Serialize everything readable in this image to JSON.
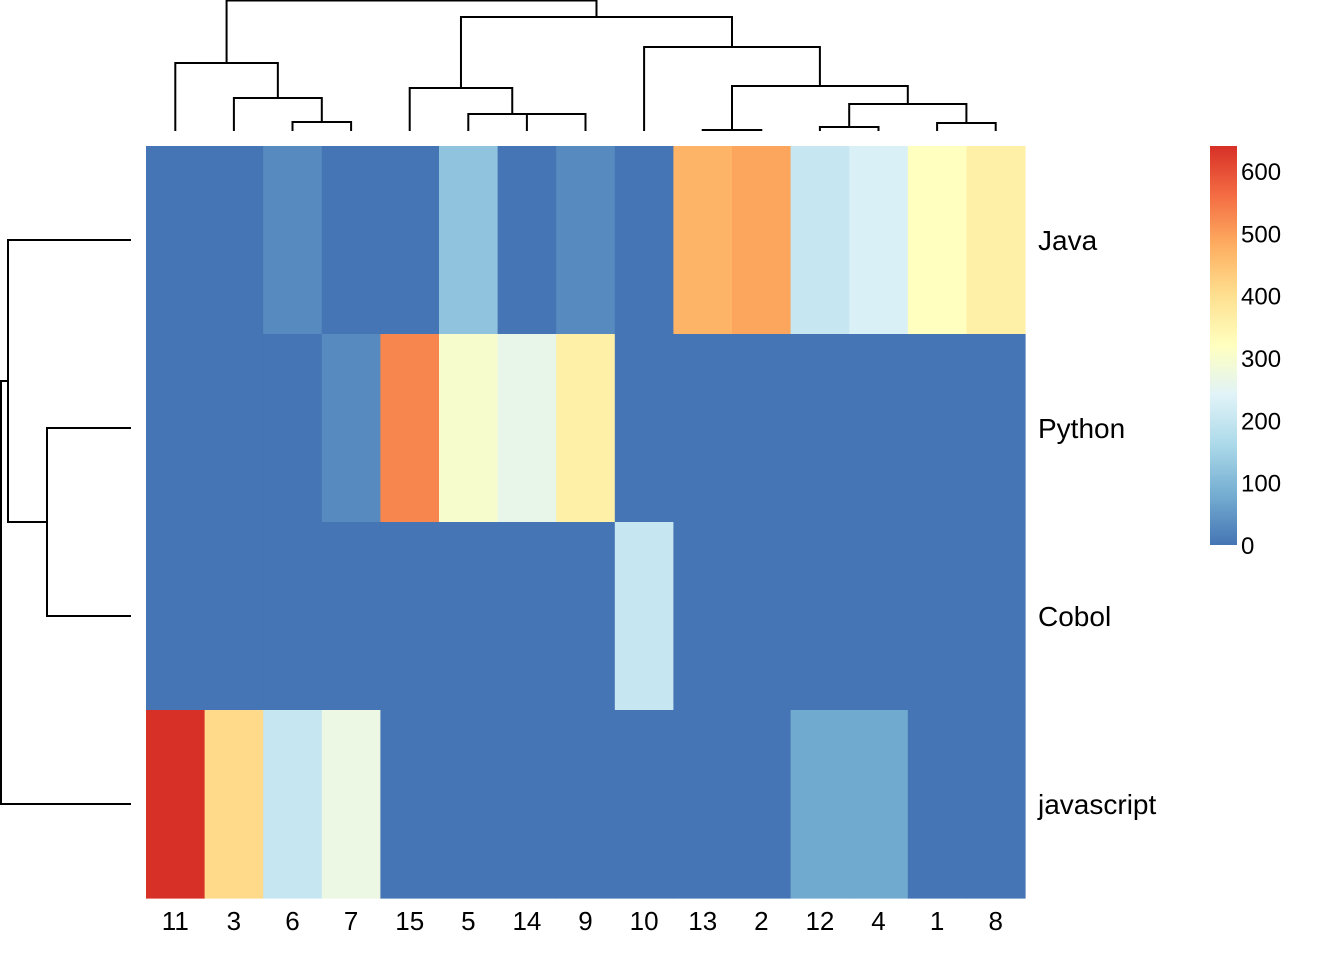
{
  "chart_data": {
    "type": "heatmap",
    "rows": [
      "Java",
      "Python",
      "Cobol",
      "javascript"
    ],
    "columns": [
      "11",
      "3",
      "6",
      "7",
      "15",
      "5",
      "14",
      "9",
      "10",
      "13",
      "2",
      "12",
      "4",
      "1",
      "8"
    ],
    "values": [
      [
        0,
        0,
        30,
        0,
        0,
        120,
        0,
        30,
        0,
        470,
        490,
        200,
        230,
        320,
        360
      ],
      [
        0,
        0,
        0,
        30,
        530,
        300,
        260,
        360,
        0,
        0,
        0,
        0,
        0,
        0,
        0
      ],
      [
        0,
        0,
        0,
        0,
        0,
        0,
        0,
        0,
        200,
        0,
        0,
        0,
        0,
        0,
        0
      ],
      [
        640,
        410,
        200,
        270,
        0,
        0,
        0,
        0,
        0,
        0,
        0,
        75,
        75,
        0,
        0
      ]
    ],
    "colorbar": {
      "ticks": [
        "0",
        "100",
        "200",
        "300",
        "400",
        "500",
        "600"
      ],
      "range": [
        0,
        640
      ],
      "colors": [
        "#4575b4",
        "#74add1",
        "#abd9e9",
        "#e0f3f8",
        "#ffffbf",
        "#fee090",
        "#fdae61",
        "#f46d43",
        "#d73027"
      ]
    },
    "title": "",
    "xlabel": "",
    "ylabel": ""
  }
}
